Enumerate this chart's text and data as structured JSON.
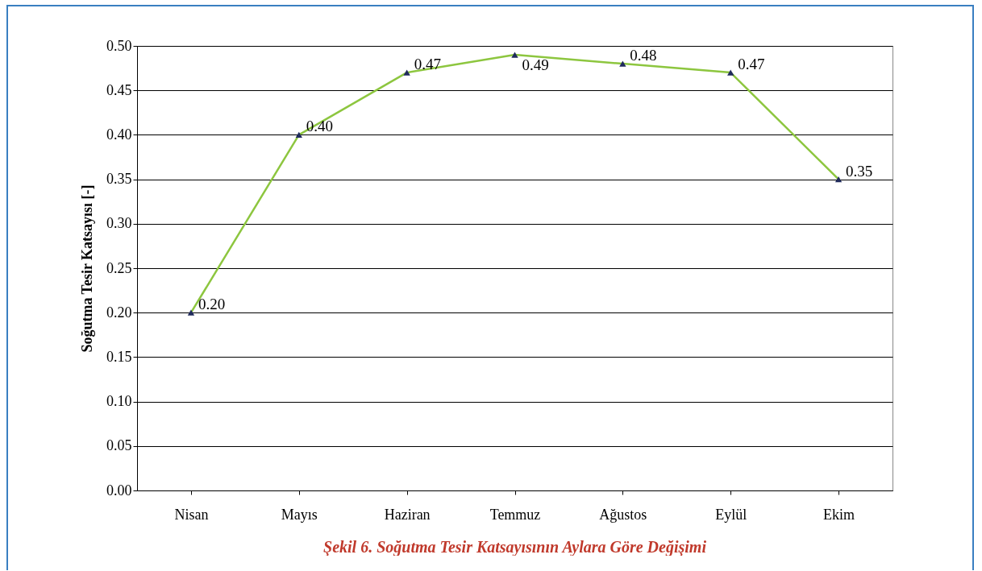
{
  "chart_data": {
    "type": "line",
    "ylabel": "Soğutma Tesir Katsayısı [-]",
    "annotations": [
      "Şekil 6. Soğutma Tesir Katsayısının Aylara Göre Değişimi"
    ],
    "categories": [
      "Nisan",
      "Mayıs",
      "Haziran",
      "Temmuz",
      "Ağustos",
      "Eylül",
      "Ekim"
    ],
    "series": [
      {
        "color": "#8dc63f",
        "values": [
          0.2,
          0.4,
          0.47,
          0.49,
          0.48,
          0.47,
          0.35
        ],
        "value_labels": [
          "0.20",
          "0.40",
          "0.47",
          "0.49",
          "0.48",
          "0.47",
          "0.35"
        ]
      }
    ],
    "ylim": [
      0,
      0.5
    ],
    "yticks": [
      {
        "value": 0,
        "label": "0.00"
      },
      {
        "value": 0.05,
        "label": "0.05"
      },
      {
        "value": 0.1,
        "label": "0.10"
      },
      {
        "value": 0.15,
        "label": "0.15"
      },
      {
        "value": 0.2,
        "label": "0.20"
      },
      {
        "value": 0.25,
        "label": "0.25"
      },
      {
        "value": 0.3,
        "label": "0.30"
      },
      {
        "value": 0.35,
        "label": "0.35"
      },
      {
        "value": 0.4,
        "label": "0.40"
      },
      {
        "value": 0.45,
        "label": "0.45"
      },
      {
        "value": 0.5,
        "label": "0.50"
      }
    ],
    "grid": "y",
    "marker": "triangle",
    "line_style": "solid"
  }
}
